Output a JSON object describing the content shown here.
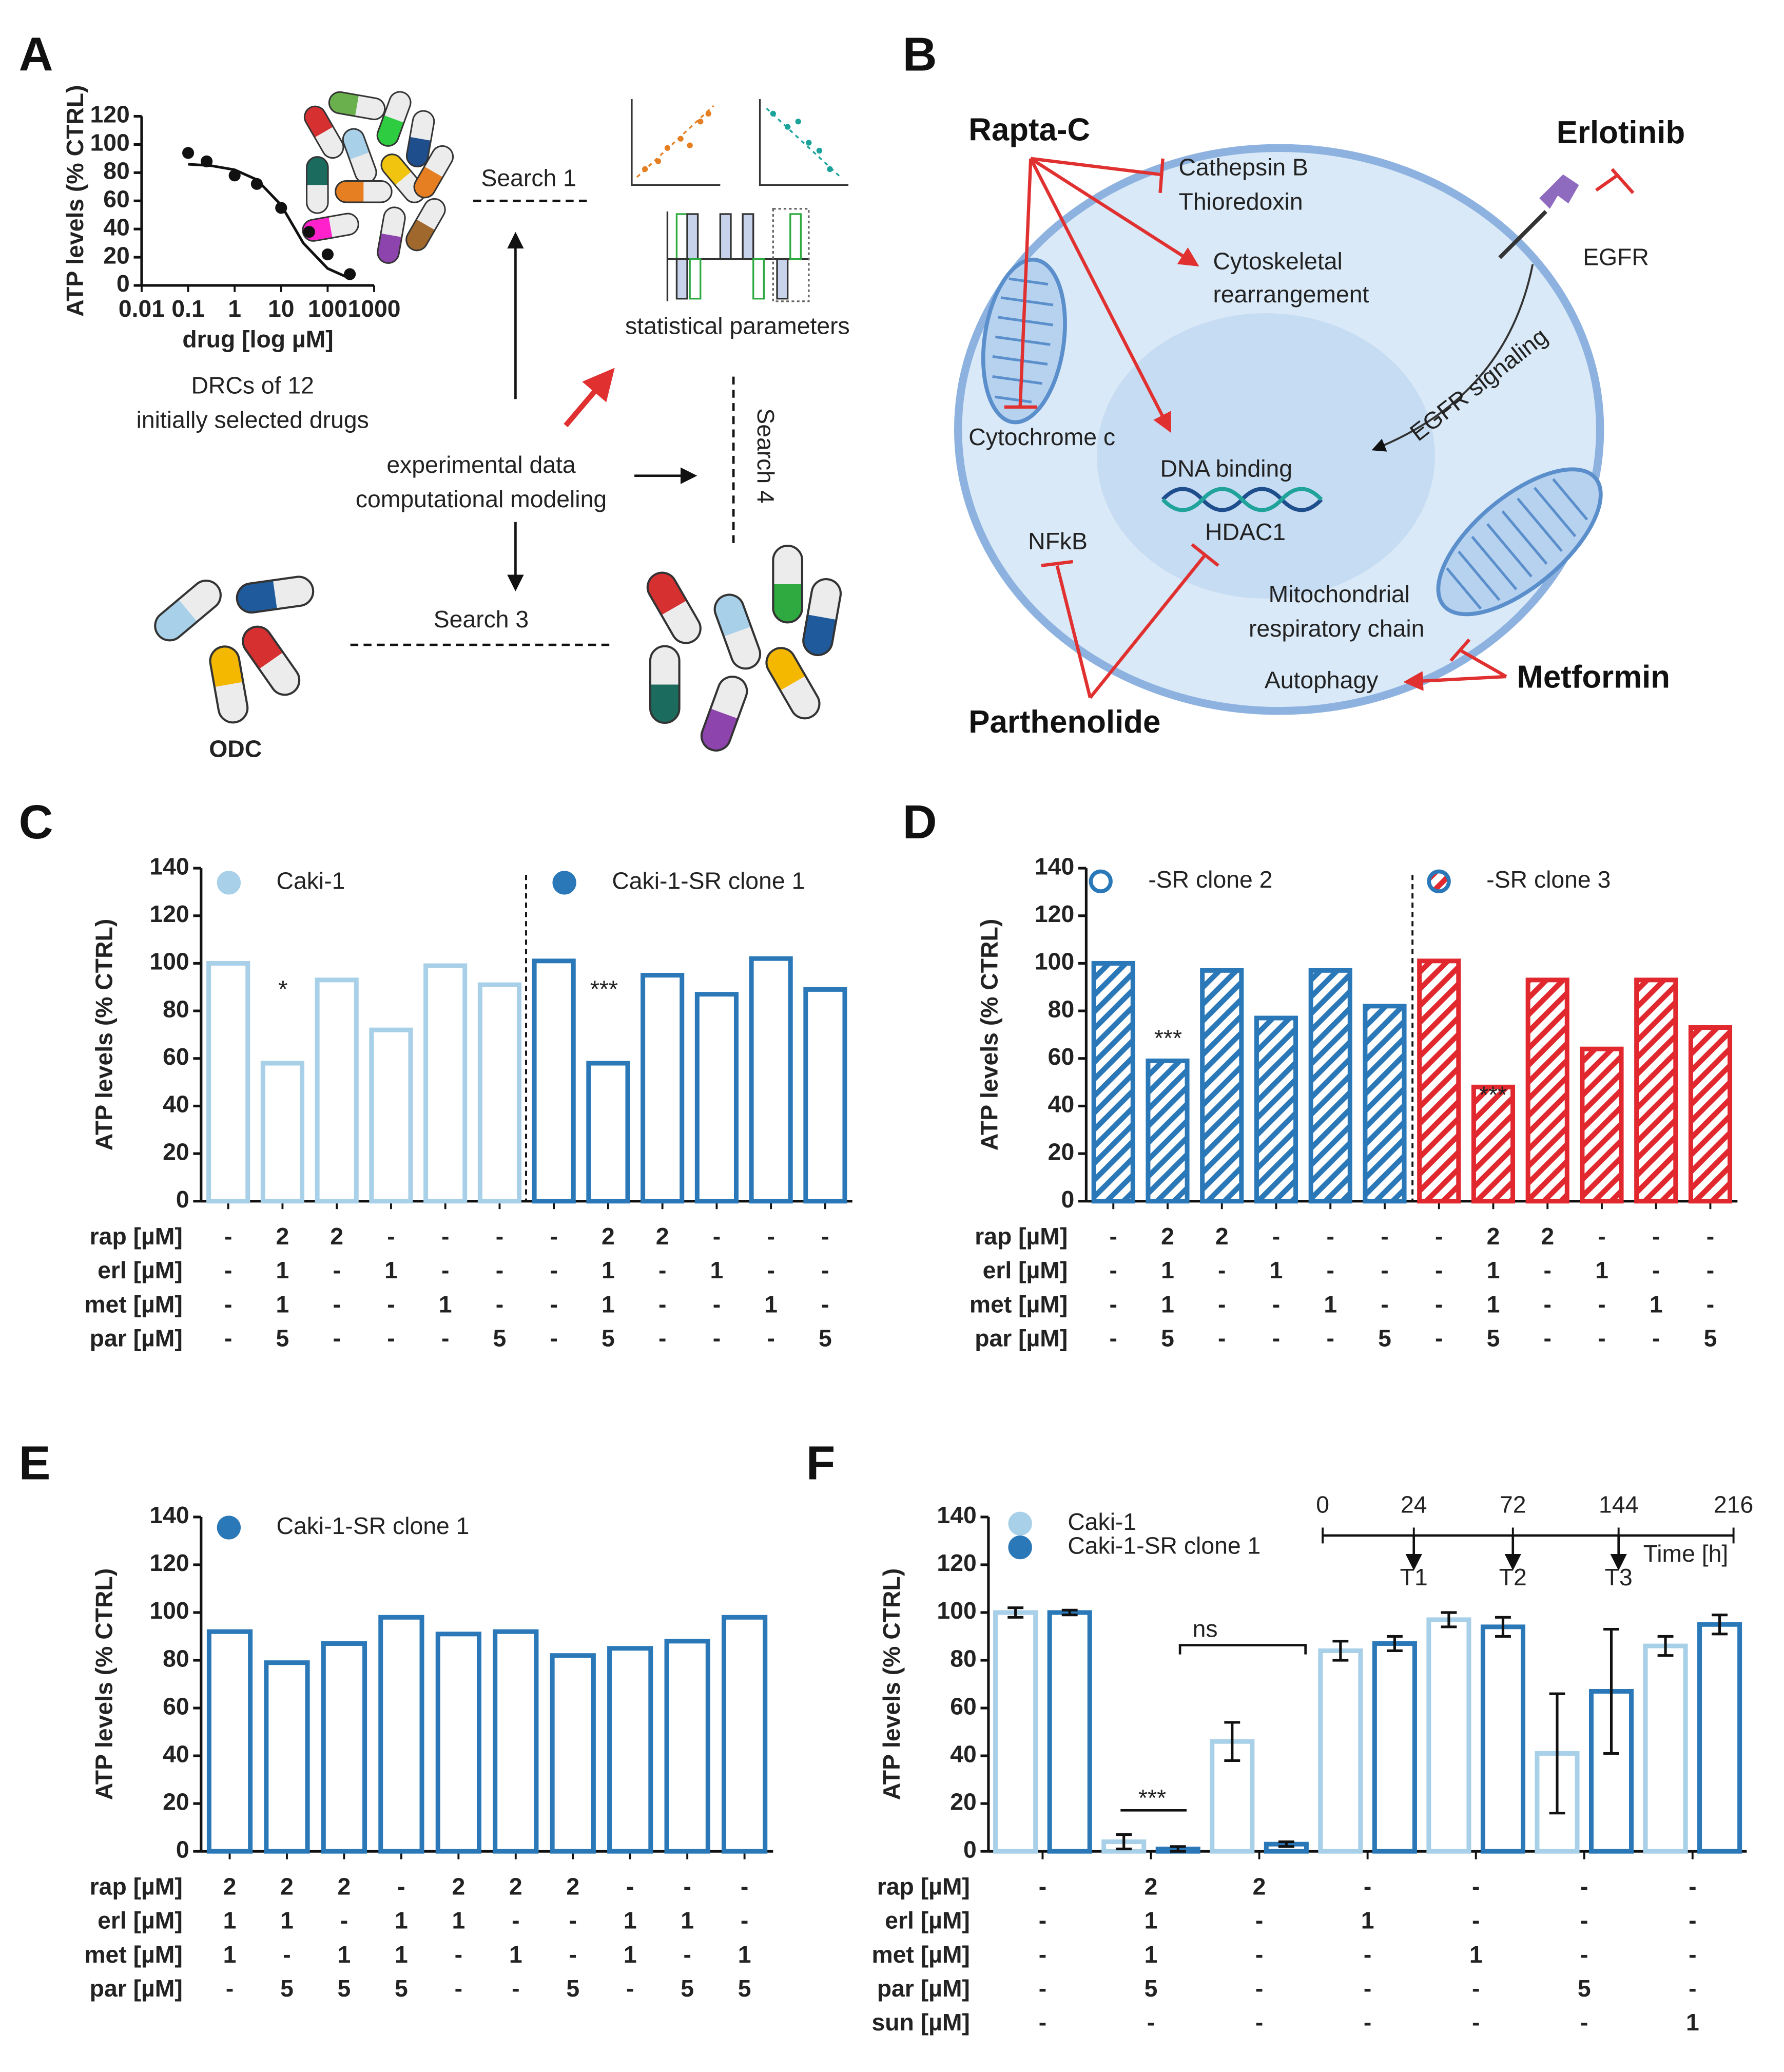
{
  "panels": [
    "A",
    "B",
    "C",
    "D",
    "E",
    "F"
  ],
  "panel_a": {
    "search_1": "Search 1",
    "stats": "statistical parameters",
    "drc_line1": "DRCs of  12",
    "drc_line2": "initially selected drugs",
    "exp_line1": "experimental data",
    "exp_line2": "computational modeling",
    "search_4": "Search 4",
    "search_3": "Search 3",
    "odc": "ODC"
  },
  "panel_b": {
    "rapta": "Rapta-C",
    "cathepsin": "Cathepsin B",
    "thioredoxin": "Thioredoxin",
    "erlotinib": "Erlotinib",
    "egfr": "EGFR",
    "cyto1": "Cytoskeletal",
    "cyto2": "rearrangement",
    "signaling": "EGFR signaling",
    "cytochrome": "Cytochrome c",
    "dna": "DNA binding",
    "hdac": "HDAC1",
    "nfkb": "NFkB",
    "mito1": "Mitochondrial",
    "mito2": "respiratory chain",
    "autophagy": "Autophagy",
    "metformin": "Metformin",
    "parthenolide": "Parthenolide"
  },
  "chart_data": [
    {
      "type": "scatter",
      "xscale": "log",
      "color": "#111111",
      "xlabel": "drug [log µM]",
      "ylabel": "ATP levels (% CTRL)",
      "x": [
        0.1,
        0.25,
        1,
        3,
        10,
        40,
        100,
        300
      ],
      "values": [
        94,
        88,
        78,
        72,
        55,
        38,
        22,
        8
      ],
      "curve": {
        "x": [
          0.1,
          0.3,
          1,
          3,
          10,
          30,
          100,
          300
        ],
        "values": [
          86,
          85,
          82,
          75,
          57,
          30,
          12,
          5
        ]
      },
      "xlim": [
        0.01,
        1000
      ],
      "xticks": [
        0.01,
        0.1,
        1,
        10,
        100,
        1000
      ],
      "ylim": [
        0,
        120
      ],
      "yticks": [
        0,
        20,
        40,
        60,
        80,
        100,
        120
      ]
    },
    {
      "type": "bar",
      "barmode": "overlay",
      "divider": true,
      "ylabel": "ATP levels (% CTRL)",
      "ylim": [
        0,
        140
      ],
      "yticks": [
        0,
        20,
        40,
        60,
        80,
        100,
        120,
        140
      ],
      "categories": [
        null,
        null,
        null,
        null,
        null,
        null,
        null,
        null,
        null,
        null,
        null,
        null
      ],
      "series": [
        {
          "name": "Caki-1",
          "color": "#a8d0e8",
          "values": [
            100,
            58,
            93,
            72,
            99,
            91,
            null,
            null,
            null,
            null,
            null,
            null
          ]
        },
        {
          "name": "Caki-1-SR clone 1",
          "color": "#2a78b8",
          "values": [
            null,
            null,
            null,
            null,
            null,
            null,
            101,
            58,
            95,
            87,
            102,
            89
          ]
        }
      ],
      "annotations": [
        "*",
        "***"
      ],
      "conditions": [
        {
          "label": "rap [µM]",
          "values": [
            "-",
            "2",
            "2",
            "-",
            "-",
            "-",
            "-",
            "2",
            "2",
            "-",
            "-",
            "-"
          ]
        },
        {
          "label": "erl [µM]",
          "values": [
            "-",
            "1",
            "-",
            "1",
            "-",
            "-",
            "-",
            "1",
            "-",
            "1",
            "-",
            "-"
          ]
        },
        {
          "label": "met [µM]",
          "values": [
            "-",
            "1",
            "-",
            "-",
            "1",
            "-",
            "-",
            "1",
            "-",
            "-",
            "1",
            "-"
          ]
        },
        {
          "label": "par [µM]",
          "values": [
            "-",
            "5",
            "-",
            "-",
            "-",
            "5",
            "-",
            "5",
            "-",
            "-",
            "-",
            "5"
          ]
        }
      ]
    },
    {
      "type": "bar",
      "barmode": "overlay",
      "divider": true,
      "ylabel": "ATP levels (% CTRL)",
      "ylim": [
        0,
        140
      ],
      "yticks": [
        0,
        20,
        40,
        60,
        80,
        100,
        120,
        140
      ],
      "categories": [
        null,
        null,
        null,
        null,
        null,
        null,
        null,
        null,
        null,
        null,
        null,
        null
      ],
      "series": [
        {
          "name": "-SR clone 2",
          "color": "#2a78b8",
          "hatch": true,
          "marker": "open",
          "values": [
            100,
            59,
            97,
            77,
            97,
            82,
            null,
            null,
            null,
            null,
            null,
            null
          ]
        },
        {
          "name": "-SR clone 3",
          "color": "#e0282e",
          "hatch": true,
          "values": [
            null,
            null,
            null,
            null,
            null,
            null,
            101,
            48,
            93,
            64,
            93,
            73
          ]
        }
      ],
      "annotations": [
        "***",
        "***"
      ],
      "conditions": [
        {
          "label": "rap [µM]",
          "values": [
            "-",
            "2",
            "2",
            "-",
            "-",
            "-",
            "-",
            "2",
            "2",
            "-",
            "-",
            "-"
          ]
        },
        {
          "label": "erl [µM]",
          "values": [
            "-",
            "1",
            "-",
            "1",
            "-",
            "-",
            "-",
            "1",
            "-",
            "1",
            "-",
            "-"
          ]
        },
        {
          "label": "met [µM]",
          "values": [
            "-",
            "1",
            "-",
            "-",
            "1",
            "-",
            "-",
            "1",
            "-",
            "-",
            "1",
            "-"
          ]
        },
        {
          "label": "par [µM]",
          "values": [
            "-",
            "5",
            "-",
            "-",
            "-",
            "5",
            "-",
            "5",
            "-",
            "-",
            "-",
            "5"
          ]
        }
      ]
    },
    {
      "type": "bar",
      "barmode": "overlay",
      "ylabel": "ATP levels (% CTRL)",
      "ylim": [
        0,
        140
      ],
      "yticks": [
        0,
        20,
        40,
        60,
        80,
        100,
        120,
        140
      ],
      "categories": [
        null,
        null,
        null,
        null,
        null,
        null,
        null,
        null,
        null,
        null
      ],
      "series": [
        {
          "name": "Caki-1-SR clone 1",
          "color": "#2a78b8",
          "values": [
            92,
            79,
            87,
            98,
            91,
            92,
            82,
            85,
            88,
            98
          ]
        }
      ],
      "conditions": [
        {
          "label": "rap [µM]",
          "values": [
            "2",
            "2",
            "2",
            "-",
            "2",
            "2",
            "2",
            "-",
            "-",
            "-"
          ]
        },
        {
          "label": "erl [µM]",
          "values": [
            "1",
            "1",
            "-",
            "1",
            "1",
            "-",
            "-",
            "1",
            "1",
            "-"
          ]
        },
        {
          "label": "met [µM]",
          "values": [
            "1",
            "-",
            "1",
            "1",
            "-",
            "1",
            "-",
            "1",
            "-",
            "1"
          ]
        },
        {
          "label": "par [µM]",
          "values": [
            "-",
            "5",
            "5",
            "5",
            "-",
            "-",
            "5",
            "-",
            "5",
            "5"
          ]
        }
      ]
    },
    {
      "type": "bar",
      "barmode": "group",
      "ylabel": "ATP levels (% CTRL)",
      "ylim": [
        0,
        140
      ],
      "yticks": [
        0,
        20,
        40,
        60,
        80,
        100,
        120,
        140
      ],
      "categories": [
        null,
        null,
        null,
        null,
        null,
        null,
        null
      ],
      "series": [
        {
          "name": "Caki-1",
          "color": "#a8d0e8",
          "values": [
            100,
            4,
            46,
            84,
            97,
            41,
            86
          ],
          "errors": [
            2,
            3,
            8,
            4,
            3,
            25,
            4
          ]
        },
        {
          "name": "Caki-1-SR clone 1",
          "color": "#2a78b8",
          "values": [
            100,
            1,
            3,
            87,
            94,
            67,
            95
          ],
          "errors": [
            1,
            1,
            1,
            3,
            4,
            26,
            4
          ]
        }
      ],
      "annotations": [
        "***",
        "ns"
      ],
      "timeline": {
        "ticks": [
          "0",
          "24",
          "72",
          "144",
          "216"
        ],
        "points": [
          "T1",
          "T2",
          "T3"
        ],
        "label": "Time [h]"
      },
      "conditions": [
        {
          "label": "rap [µM]",
          "values": [
            "-",
            "2",
            "2",
            "-",
            "-",
            "-",
            "-"
          ]
        },
        {
          "label": "erl [µM]",
          "values": [
            "-",
            "1",
            "-",
            "1",
            "-",
            "-",
            "-"
          ]
        },
        {
          "label": "met [µM]",
          "values": [
            "-",
            "1",
            "-",
            "-",
            "1",
            "-",
            "-"
          ]
        },
        {
          "label": "par [µM]",
          "values": [
            "-",
            "5",
            "-",
            "-",
            "-",
            "5",
            "-"
          ]
        },
        {
          "label": "sun [µM]",
          "values": [
            "-",
            "-",
            "-",
            "-",
            "-",
            "-",
            "1"
          ]
        }
      ]
    }
  ]
}
